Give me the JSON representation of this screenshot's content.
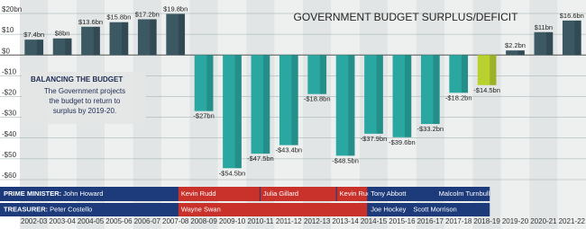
{
  "chart_data": {
    "type": "bar",
    "title": "GOVERNMENT BUDGET SURPLUS/DEFICIT",
    "annotation": {
      "heading": "BALANCING THE BUDGET",
      "text": [
        "The Government projects",
        "the budget to return to",
        "surplus by 2019-20."
      ]
    },
    "categories": [
      "2002-03",
      "2003-04",
      "2004-05",
      "2005-06",
      "2006-07",
      "2007-08",
      "2008-09",
      "2009-10",
      "2010-11",
      "2011-12",
      "2012-13",
      "2013-14",
      "2014-15",
      "2015-16",
      "2016-17",
      "2017-18",
      "2018-19",
      "2019-20",
      "2020-21",
      "2021-22"
    ],
    "values": [
      7.4,
      8,
      13.6,
      15.8,
      17.2,
      19.8,
      -27,
      -54.5,
      -47.5,
      -43.4,
      -18.8,
      -48.5,
      -37.9,
      -39.6,
      -33.2,
      -18.2,
      -14.5,
      2.2,
      11,
      16.6
    ],
    "value_labels": [
      "$7.4bn",
      "$8bn",
      "$13.6bn",
      "$15.8bn",
      "$17.2bn",
      "$19.8bn",
      "-$27bn",
      "-$54.5bn",
      "-$47.5bn",
      "-$43.4bn",
      "-$18.8bn",
      "-$48.5bn",
      "-$37.9bn",
      "-$39.6bn",
      "-$33.2bn",
      "-$18.2bn",
      "-$14.5bn",
      "$2.2bn",
      "$11bn",
      "$16.6bn"
    ],
    "colors": [
      "#3b5863",
      "#3b5863",
      "#3b5863",
      "#3b5863",
      "#3b5863",
      "#3b5863",
      "#2ba7a2",
      "#2ba7a2",
      "#2ba7a2",
      "#2ba7a2",
      "#2ba7a2",
      "#2ba7a2",
      "#2ba7a2",
      "#2ba7a2",
      "#2ba7a2",
      "#2ba7a2",
      "#b9d12e",
      "#3b5863",
      "#3b5863",
      "#3b5863"
    ],
    "ylim": [
      -60,
      20
    ],
    "yticks": [
      {
        "value": 20,
        "label": "$20bn"
      },
      {
        "value": 10,
        "label": "$10"
      },
      {
        "value": 0,
        "label": "$0"
      },
      {
        "value": -10,
        "label": "-$10"
      },
      {
        "value": -20,
        "label": "-$20"
      },
      {
        "value": -30,
        "label": "-$30"
      },
      {
        "value": -40,
        "label": "-$40"
      },
      {
        "value": -50,
        "label": "-$50"
      },
      {
        "value": -60,
        "label": "-$60"
      }
    ],
    "grid": true,
    "prime_minister": {
      "label": "PRIME MINISTER:",
      "names": [
        "John Howard",
        "Kevin Rudd",
        "Julia Gillard",
        "Kevin Rudd",
        "Tony Abbott",
        "Malcolm Turnbull"
      ]
    },
    "treasurer": {
      "label": "TREASURER:",
      "names": [
        "Peter Costello",
        "Wayne Swan",
        "Joe Hockey",
        "Scott Morrison"
      ]
    }
  }
}
